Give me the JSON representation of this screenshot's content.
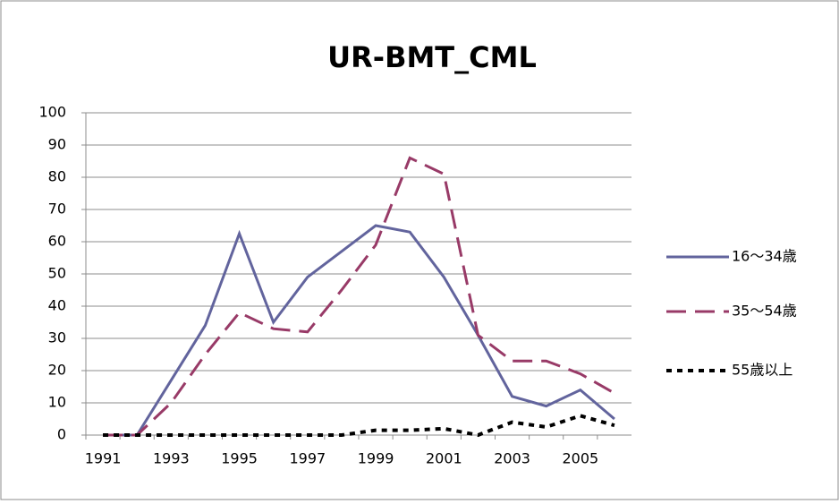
{
  "chart_data": {
    "type": "line",
    "title": "UR-BMT_CML",
    "categories": [
      "1991",
      null,
      "1993",
      null,
      "1995",
      null,
      "1997",
      null,
      "1999",
      null,
      "2001",
      null,
      "2003",
      null,
      "2005",
      null
    ],
    "series": [
      {
        "name": "16～34歳",
        "color": "#62649d",
        "dash": "solid",
        "values": [
          0,
          0,
          17,
          34,
          62.5,
          35,
          49,
          57,
          65,
          63,
          49,
          31,
          12,
          9,
          14,
          5
        ]
      },
      {
        "name": "35～54歳",
        "color": "#983a67",
        "dash": "dashed",
        "values": [
          0,
          0,
          10,
          25,
          38,
          33,
          32,
          45,
          59,
          86,
          81,
          31,
          23,
          23,
          19,
          13
        ]
      },
      {
        "name": "55歳以上",
        "color": "#000000",
        "dash": "dotted",
        "values": [
          0,
          0,
          0,
          0,
          0,
          0,
          0,
          0,
          1.5,
          1.5,
          2,
          0,
          4,
          2.5,
          6,
          3
        ]
      }
    ],
    "ylim": [
      0,
      100
    ],
    "yticks": [
      0,
      10,
      20,
      30,
      40,
      50,
      60,
      70,
      80,
      90,
      100
    ],
    "grid": true,
    "legend": "right"
  }
}
